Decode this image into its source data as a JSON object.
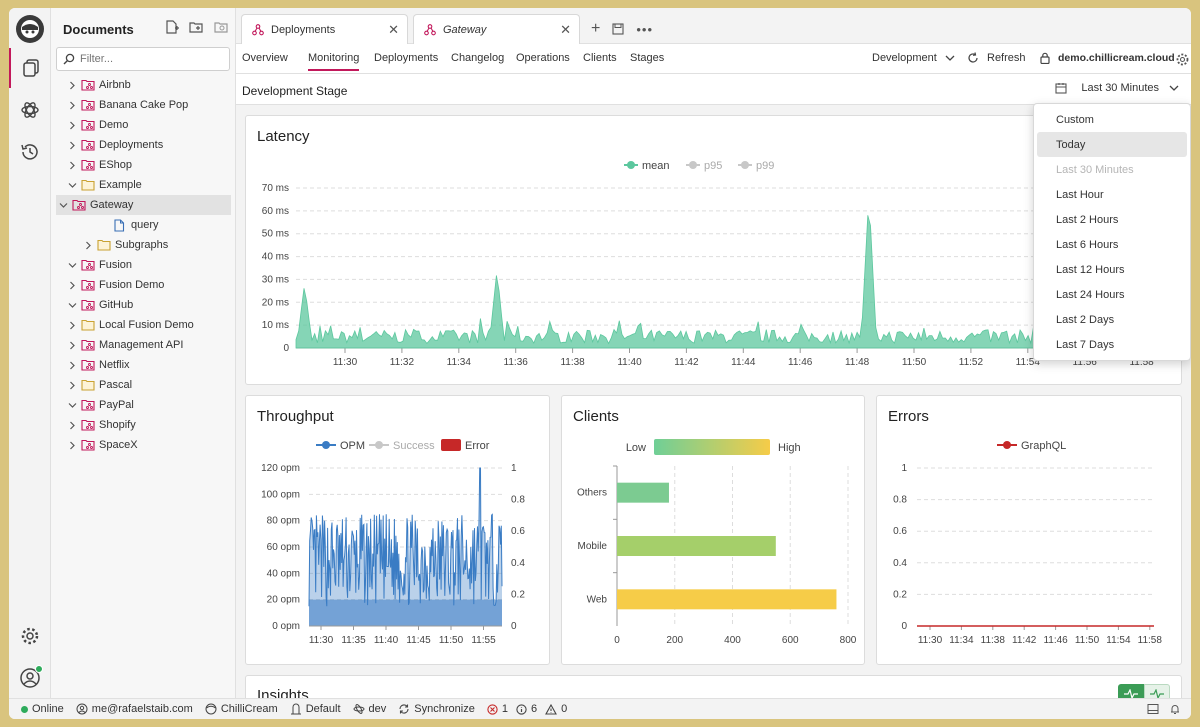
{
  "sidebar": {
    "title": "Documents",
    "filter_placeholder": "Filter...",
    "items": [
      {
        "label": "Airbnb",
        "icon": "api-folder-icon",
        "level": 0,
        "expanded": false
      },
      {
        "label": "Banana Cake Pop",
        "icon": "api-folder-icon",
        "level": 0,
        "expanded": false
      },
      {
        "label": "Demo",
        "icon": "api-folder-icon",
        "level": 0,
        "expanded": false
      },
      {
        "label": "Deployments",
        "icon": "api-folder-icon",
        "level": 0,
        "expanded": false
      },
      {
        "label": "EShop",
        "icon": "api-folder-icon",
        "level": 0,
        "expanded": false
      },
      {
        "label": "Example",
        "icon": "folder-icon",
        "level": 0,
        "expanded": true
      },
      {
        "label": "Gateway",
        "icon": "api-folder-icon",
        "level": 1,
        "expanded": true,
        "selected": true
      },
      {
        "label": "query",
        "icon": "file-icon",
        "level": 2,
        "leaf": true
      },
      {
        "label": "Subgraphs",
        "icon": "folder-icon",
        "level": 1,
        "expanded": false
      },
      {
        "label": "Fusion",
        "icon": "api-folder-icon",
        "level": 0,
        "expanded": true
      },
      {
        "label": "Fusion Demo",
        "icon": "api-folder-icon",
        "level": 0,
        "expanded": false
      },
      {
        "label": "GitHub",
        "icon": "api-folder-icon",
        "level": 0,
        "expanded": true
      },
      {
        "label": "Local Fusion Demo",
        "icon": "folder-icon",
        "level": 0,
        "expanded": false
      },
      {
        "label": "Management API",
        "icon": "api-folder-icon",
        "level": 0,
        "expanded": false
      },
      {
        "label": "Netflix",
        "icon": "api-folder-icon",
        "level": 0,
        "expanded": false
      },
      {
        "label": "Pascal",
        "icon": "folder-icon",
        "level": 0,
        "expanded": false
      },
      {
        "label": "PayPal",
        "icon": "api-folder-icon",
        "level": 0,
        "expanded": true
      },
      {
        "label": "Shopify",
        "icon": "api-folder-icon",
        "level": 0,
        "expanded": false
      },
      {
        "label": "SpaceX",
        "icon": "api-folder-icon",
        "level": 0,
        "expanded": false
      }
    ]
  },
  "tabs": [
    {
      "label": "Deployments",
      "italic": false
    },
    {
      "label": "Gateway",
      "italic": true
    }
  ],
  "subnav": {
    "items": [
      "Overview",
      "Monitoring",
      "Deployments",
      "Changelog",
      "Operations",
      "Clients",
      "Stages"
    ],
    "active": "Monitoring",
    "environment": "Development",
    "refresh": "Refresh",
    "host": "demo.chillicream.cloud"
  },
  "stage": {
    "title": "Development Stage",
    "range": "Last 30 Minutes"
  },
  "dropdown": {
    "items": [
      "Custom",
      "Today",
      "Last 30 Minutes",
      "Last Hour",
      "Last 2 Hours",
      "Last 6 Hours",
      "Last 12 Hours",
      "Last 24 Hours",
      "Last 2 Days",
      "Last 7 Days"
    ],
    "hover": "Today",
    "disabled": "Last 30 Minutes"
  },
  "cards": {
    "latency": "Latency",
    "throughput": "Throughput",
    "clients": "Clients",
    "errors": "Errors",
    "insights": "Insights"
  },
  "chart_data": [
    {
      "type": "area",
      "title": "Latency",
      "legend": [
        "mean",
        "p95",
        "p99"
      ],
      "legend_active": [
        "mean"
      ],
      "y_ticks": [
        "0",
        "10 ms",
        "20 ms",
        "30 ms",
        "40 ms",
        "50 ms",
        "60 ms",
        "70 ms"
      ],
      "ylim": [
        0,
        70
      ],
      "x_ticks": [
        "11:30",
        "11:32",
        "11:34",
        "11:36",
        "11:38",
        "11:40",
        "11:42",
        "11:44",
        "11:46",
        "11:48",
        "11:50",
        "11:52",
        "11:54",
        "11:56",
        "11:58"
      ],
      "series": [
        {
          "name": "mean",
          "color": "#5cc79e",
          "baseline": 5,
          "spikes": [
            [
              0.01,
              28
            ],
            [
              0.235,
              34
            ],
            [
              0.67,
              67
            ],
            [
              0.87,
              45
            ],
            [
              0.905,
              37
            ]
          ]
        }
      ]
    },
    {
      "type": "line",
      "title": "Throughput",
      "legend": [
        "OPM",
        "Success",
        "Error"
      ],
      "y_ticks": [
        "0 opm",
        "20 opm",
        "40 opm",
        "60 opm",
        "80 opm",
        "100 opm",
        "120 opm"
      ],
      "y2_ticks": [
        "0",
        "0.2",
        "0.4",
        "0.6",
        "0.8",
        "1"
      ],
      "ylim": [
        0,
        120
      ],
      "x_ticks": [
        "11:30",
        "11:35",
        "11:40",
        "11:45",
        "11:50",
        "11:55"
      ],
      "series": [
        {
          "name": "OPM",
          "color": "#3a7cc4",
          "floor": 20,
          "range": [
            15,
            85
          ],
          "peak": 120
        }
      ]
    },
    {
      "type": "bar",
      "title": "Clients",
      "orientation": "horizontal",
      "legend_low": "Low",
      "legend_high": "High",
      "categories": [
        "Others",
        "Mobile",
        "Web"
      ],
      "values": [
        180,
        550,
        760
      ],
      "colors": [
        "#7ccb91",
        "#a5cf6a",
        "#f6cc48"
      ],
      "x_ticks": [
        "0",
        "200",
        "400",
        "600",
        "800"
      ],
      "xlim": [
        0,
        800
      ]
    },
    {
      "type": "line",
      "title": "Errors",
      "legend": [
        "GraphQL"
      ],
      "y_ticks": [
        "0",
        "0.2",
        "0.4",
        "0.6",
        "0.8",
        "1"
      ],
      "ylim": [
        0,
        1
      ],
      "x_ticks": [
        "11:30",
        "11:34",
        "11:38",
        "11:42",
        "11:46",
        "11:50",
        "11:54",
        "11:58"
      ],
      "series": [
        {
          "name": "GraphQL",
          "color": "#c62828",
          "value": 0
        }
      ]
    }
  ],
  "status": {
    "online": "Online",
    "user": "me@rafaelstaib.com",
    "org": "ChilliCream",
    "workspace": "Default",
    "env": "dev",
    "sync": "Synchronize",
    "errors": "1",
    "infos": "6",
    "warnings": "0"
  },
  "colors": {
    "accent": "#c2185b",
    "latency": "#5cc79e",
    "throughput": "#3a7cc4",
    "error": "#c62828"
  }
}
